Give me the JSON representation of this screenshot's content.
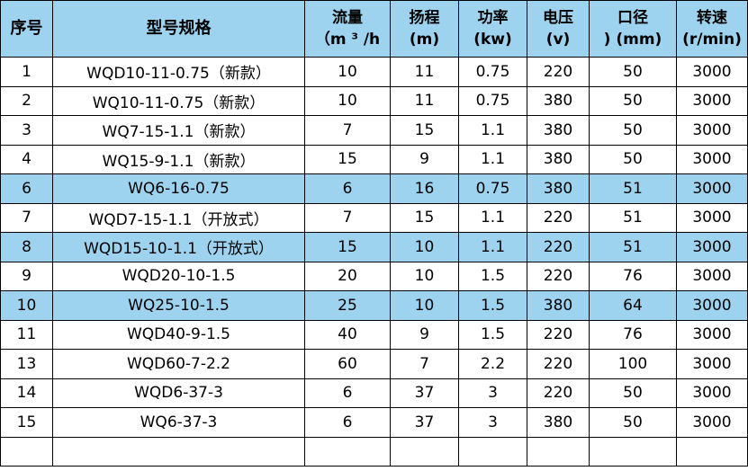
{
  "table": {
    "headers": [
      {
        "lines": [
          "序号"
        ]
      },
      {
        "lines": [
          "型号规格"
        ]
      },
      {
        "lines": [
          "流量",
          "（m ³ /h"
        ]
      },
      {
        "lines": [
          "扬程",
          "(m)"
        ]
      },
      {
        "lines": [
          "功率",
          "(kw)"
        ]
      },
      {
        "lines": [
          "电压",
          "(v)"
        ]
      },
      {
        "lines": [
          "口径",
          ") (mm)"
        ]
      },
      {
        "lines": [
          "转速",
          "(r/min)"
        ]
      }
    ],
    "rows": [
      {
        "cells": [
          "1",
          "WQD10-11-0.75（新款）",
          "10",
          "11",
          "0.75",
          "220",
          "50",
          "3000"
        ],
        "highlight": false
      },
      {
        "cells": [
          "2",
          "WQ10-11-0.75（新款）",
          "10",
          "11",
          "0.75",
          "380",
          "50",
          "3000"
        ],
        "highlight": false
      },
      {
        "cells": [
          "3",
          "WQ7-15-1.1（新款）",
          "7",
          "15",
          "1.1",
          "380",
          "50",
          "3000"
        ],
        "highlight": false
      },
      {
        "cells": [
          "4",
          "WQ15-9-1.1（新款）",
          "15",
          "9",
          "1.1",
          "380",
          "50",
          "3000"
        ],
        "highlight": false
      },
      {
        "cells": [
          "6",
          "WQ6-16-0.75",
          "6",
          "16",
          "0.75",
          "380",
          "51",
          "3000"
        ],
        "highlight": true
      },
      {
        "cells": [
          "7",
          "WQD7-15-1.1（开放式）",
          "7",
          "15",
          "1.1",
          "220",
          "51",
          "3000"
        ],
        "highlight": false
      },
      {
        "cells": [
          "8",
          "WQD15-10-1.1（开放式）",
          "15",
          "10",
          "1.1",
          "220",
          "51",
          "3000"
        ],
        "highlight": true
      },
      {
        "cells": [
          "9",
          "WQD20-10-1.5",
          "20",
          "10",
          "1.5",
          "220",
          "76",
          "3000"
        ],
        "highlight": false
      },
      {
        "cells": [
          "10",
          "WQ25-10-1.5",
          "25",
          "10",
          "1.5",
          "380",
          "64",
          "3000"
        ],
        "highlight": true
      },
      {
        "cells": [
          "11",
          "WQD40-9-1.5",
          "40",
          "9",
          "1.5",
          "220",
          "76",
          "3000"
        ],
        "highlight": false
      },
      {
        "cells": [
          "13",
          "WQD60-7-2.2",
          "60",
          "7",
          "2.2",
          "220",
          "100",
          "3000"
        ],
        "highlight": false
      },
      {
        "cells": [
          "14",
          "WQD6-37-3",
          "6",
          "37",
          "3",
          "220",
          "50",
          "3000"
        ],
        "highlight": false
      },
      {
        "cells": [
          "15",
          "WQ6-37-3",
          "6",
          "37",
          "3",
          "380",
          "50",
          "3000"
        ],
        "highlight": false
      },
      {
        "cells": [
          "",
          "",
          "",
          "",
          "",
          "",
          "",
          ""
        ],
        "highlight": false
      }
    ]
  },
  "colors": {
    "header_bg": "#9dd3ef",
    "highlight_bg": "#9dd3ef",
    "border": "#000000"
  }
}
